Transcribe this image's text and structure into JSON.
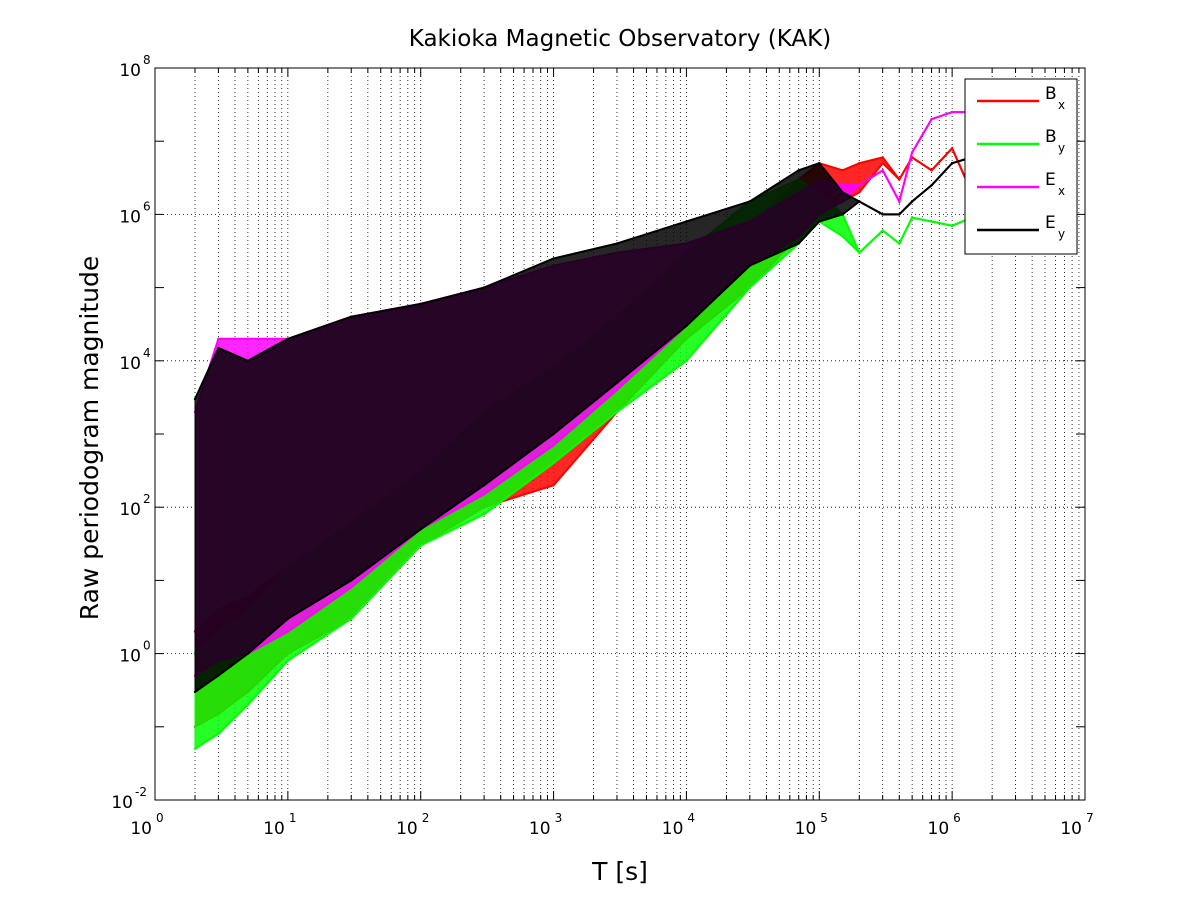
{
  "chart_data": {
    "type": "line",
    "title": "Kakioka Magnetic Observatory (KAK)",
    "xlabel": "T [s]",
    "ylabel": "Raw periodogram magnitude",
    "x_scale": "log",
    "y_scale": "log",
    "xlim": [
      1,
      10000000
    ],
    "ylim": [
      0.01,
      100000000
    ],
    "x_ticks": [
      {
        "base": "10",
        "exp": "0"
      },
      {
        "base": "10",
        "exp": "1"
      },
      {
        "base": "10",
        "exp": "2"
      },
      {
        "base": "10",
        "exp": "3"
      },
      {
        "base": "10",
        "exp": "4"
      },
      {
        "base": "10",
        "exp": "5"
      },
      {
        "base": "10",
        "exp": "6"
      },
      {
        "base": "10",
        "exp": "7"
      }
    ],
    "y_ticks": [
      {
        "base": "10",
        "exp": "-2"
      },
      {
        "base": "10",
        "exp": "0"
      },
      {
        "base": "10",
        "exp": "2"
      },
      {
        "base": "10",
        "exp": "4"
      },
      {
        "base": "10",
        "exp": "6"
      },
      {
        "base": "10",
        "exp": "8"
      }
    ],
    "grid": true,
    "legend_position": "top-right",
    "series": [
      {
        "name": "B",
        "sub": "x",
        "color": "#ff0000",
        "x": [
          2,
          3,
          5,
          10,
          30,
          100,
          300,
          1000,
          3000,
          10000,
          30000,
          70000,
          100000,
          150000,
          200000,
          300000,
          400000,
          500000,
          700000,
          1000000,
          1400000,
          2000000,
          2600000
        ],
        "y_low": [
          0.1,
          0.15,
          0.3,
          1,
          3,
          30,
          100,
          200,
          2000,
          20000,
          100000,
          500000,
          1000000,
          1500000,
          2000000,
          5000000,
          3000000,
          6000000,
          4000000,
          8000000,
          2000000,
          5000000,
          20000000
        ],
        "y_high": [
          2,
          4,
          6,
          15,
          60,
          300,
          2000,
          8000,
          40000,
          200000,
          700000,
          3000000,
          5000000,
          4000000,
          5000000,
          6000000,
          3000000,
          6000000,
          4000000,
          8000000,
          2000000,
          5000000,
          20000000
        ]
      },
      {
        "name": "B",
        "sub": "y",
        "color": "#00ff00",
        "x": [
          2,
          3,
          5,
          10,
          30,
          100,
          300,
          1000,
          3000,
          10000,
          30000,
          70000,
          100000,
          150000,
          200000,
          300000,
          400000,
          500000,
          700000,
          1000000,
          1400000,
          2000000,
          2600000
        ],
        "y_low": [
          0.05,
          0.08,
          0.2,
          0.8,
          3,
          30,
          80,
          400,
          2000,
          10000,
          100000,
          400000,
          800000,
          500000,
          300000,
          600000,
          400000,
          900000,
          800000,
          700000,
          900000,
          2000000,
          4000000
        ],
        "y_high": [
          1,
          2,
          4,
          15,
          60,
          300,
          2000,
          8000,
          40000,
          300000,
          1500000,
          3000000,
          2000000,
          1000000,
          300000,
          600000,
          400000,
          900000,
          800000,
          700000,
          900000,
          2000000,
          4000000
        ]
      },
      {
        "name": "E",
        "sub": "x",
        "color": "#ff00ff",
        "x": [
          2,
          3,
          5,
          10,
          30,
          100,
          300,
          1000,
          3000,
          10000,
          30000,
          70000,
          100000,
          150000,
          200000,
          300000,
          400000,
          500000,
          700000,
          1000000,
          1400000,
          2000000,
          2600000
        ],
        "y_low": [
          0.5,
          0.8,
          1,
          2,
          8,
          50,
          150,
          700,
          4000,
          30000,
          200000,
          500000,
          1000000,
          1500000,
          2500000,
          4000000,
          1500000,
          7000000,
          20000000,
          25000000,
          25000000,
          30000000,
          40000000
        ],
        "y_high": [
          2000,
          20000,
          20000,
          20000,
          40000,
          60000,
          100000,
          200000,
          300000,
          400000,
          800000,
          2000000,
          3000000,
          2500000,
          2500000,
          4000000,
          1500000,
          7000000,
          20000000,
          25000000,
          25000000,
          30000000,
          40000000
        ]
      },
      {
        "name": "E",
        "sub": "y",
        "color": "#000000",
        "x": [
          2,
          3,
          5,
          10,
          30,
          100,
          300,
          1000,
          3000,
          10000,
          30000,
          70000,
          100000,
          150000,
          200000,
          300000,
          400000,
          500000,
          700000,
          1000000,
          1400000,
          2000000,
          2600000
        ],
        "y_low": [
          0.3,
          0.5,
          1,
          3,
          10,
          50,
          200,
          1000,
          5000,
          30000,
          200000,
          400000,
          800000,
          1000000,
          1500000,
          1000000,
          1000000,
          1500000,
          2500000,
          5000000,
          6000000,
          7000000,
          8000000
        ],
        "y_high": [
          3000,
          15000,
          10000,
          20000,
          40000,
          60000,
          100000,
          250000,
          400000,
          800000,
          1500000,
          4000000,
          5000000,
          2000000,
          1500000,
          1000000,
          1000000,
          1500000,
          2500000,
          5000000,
          6000000,
          7000000,
          8000000
        ]
      }
    ]
  }
}
